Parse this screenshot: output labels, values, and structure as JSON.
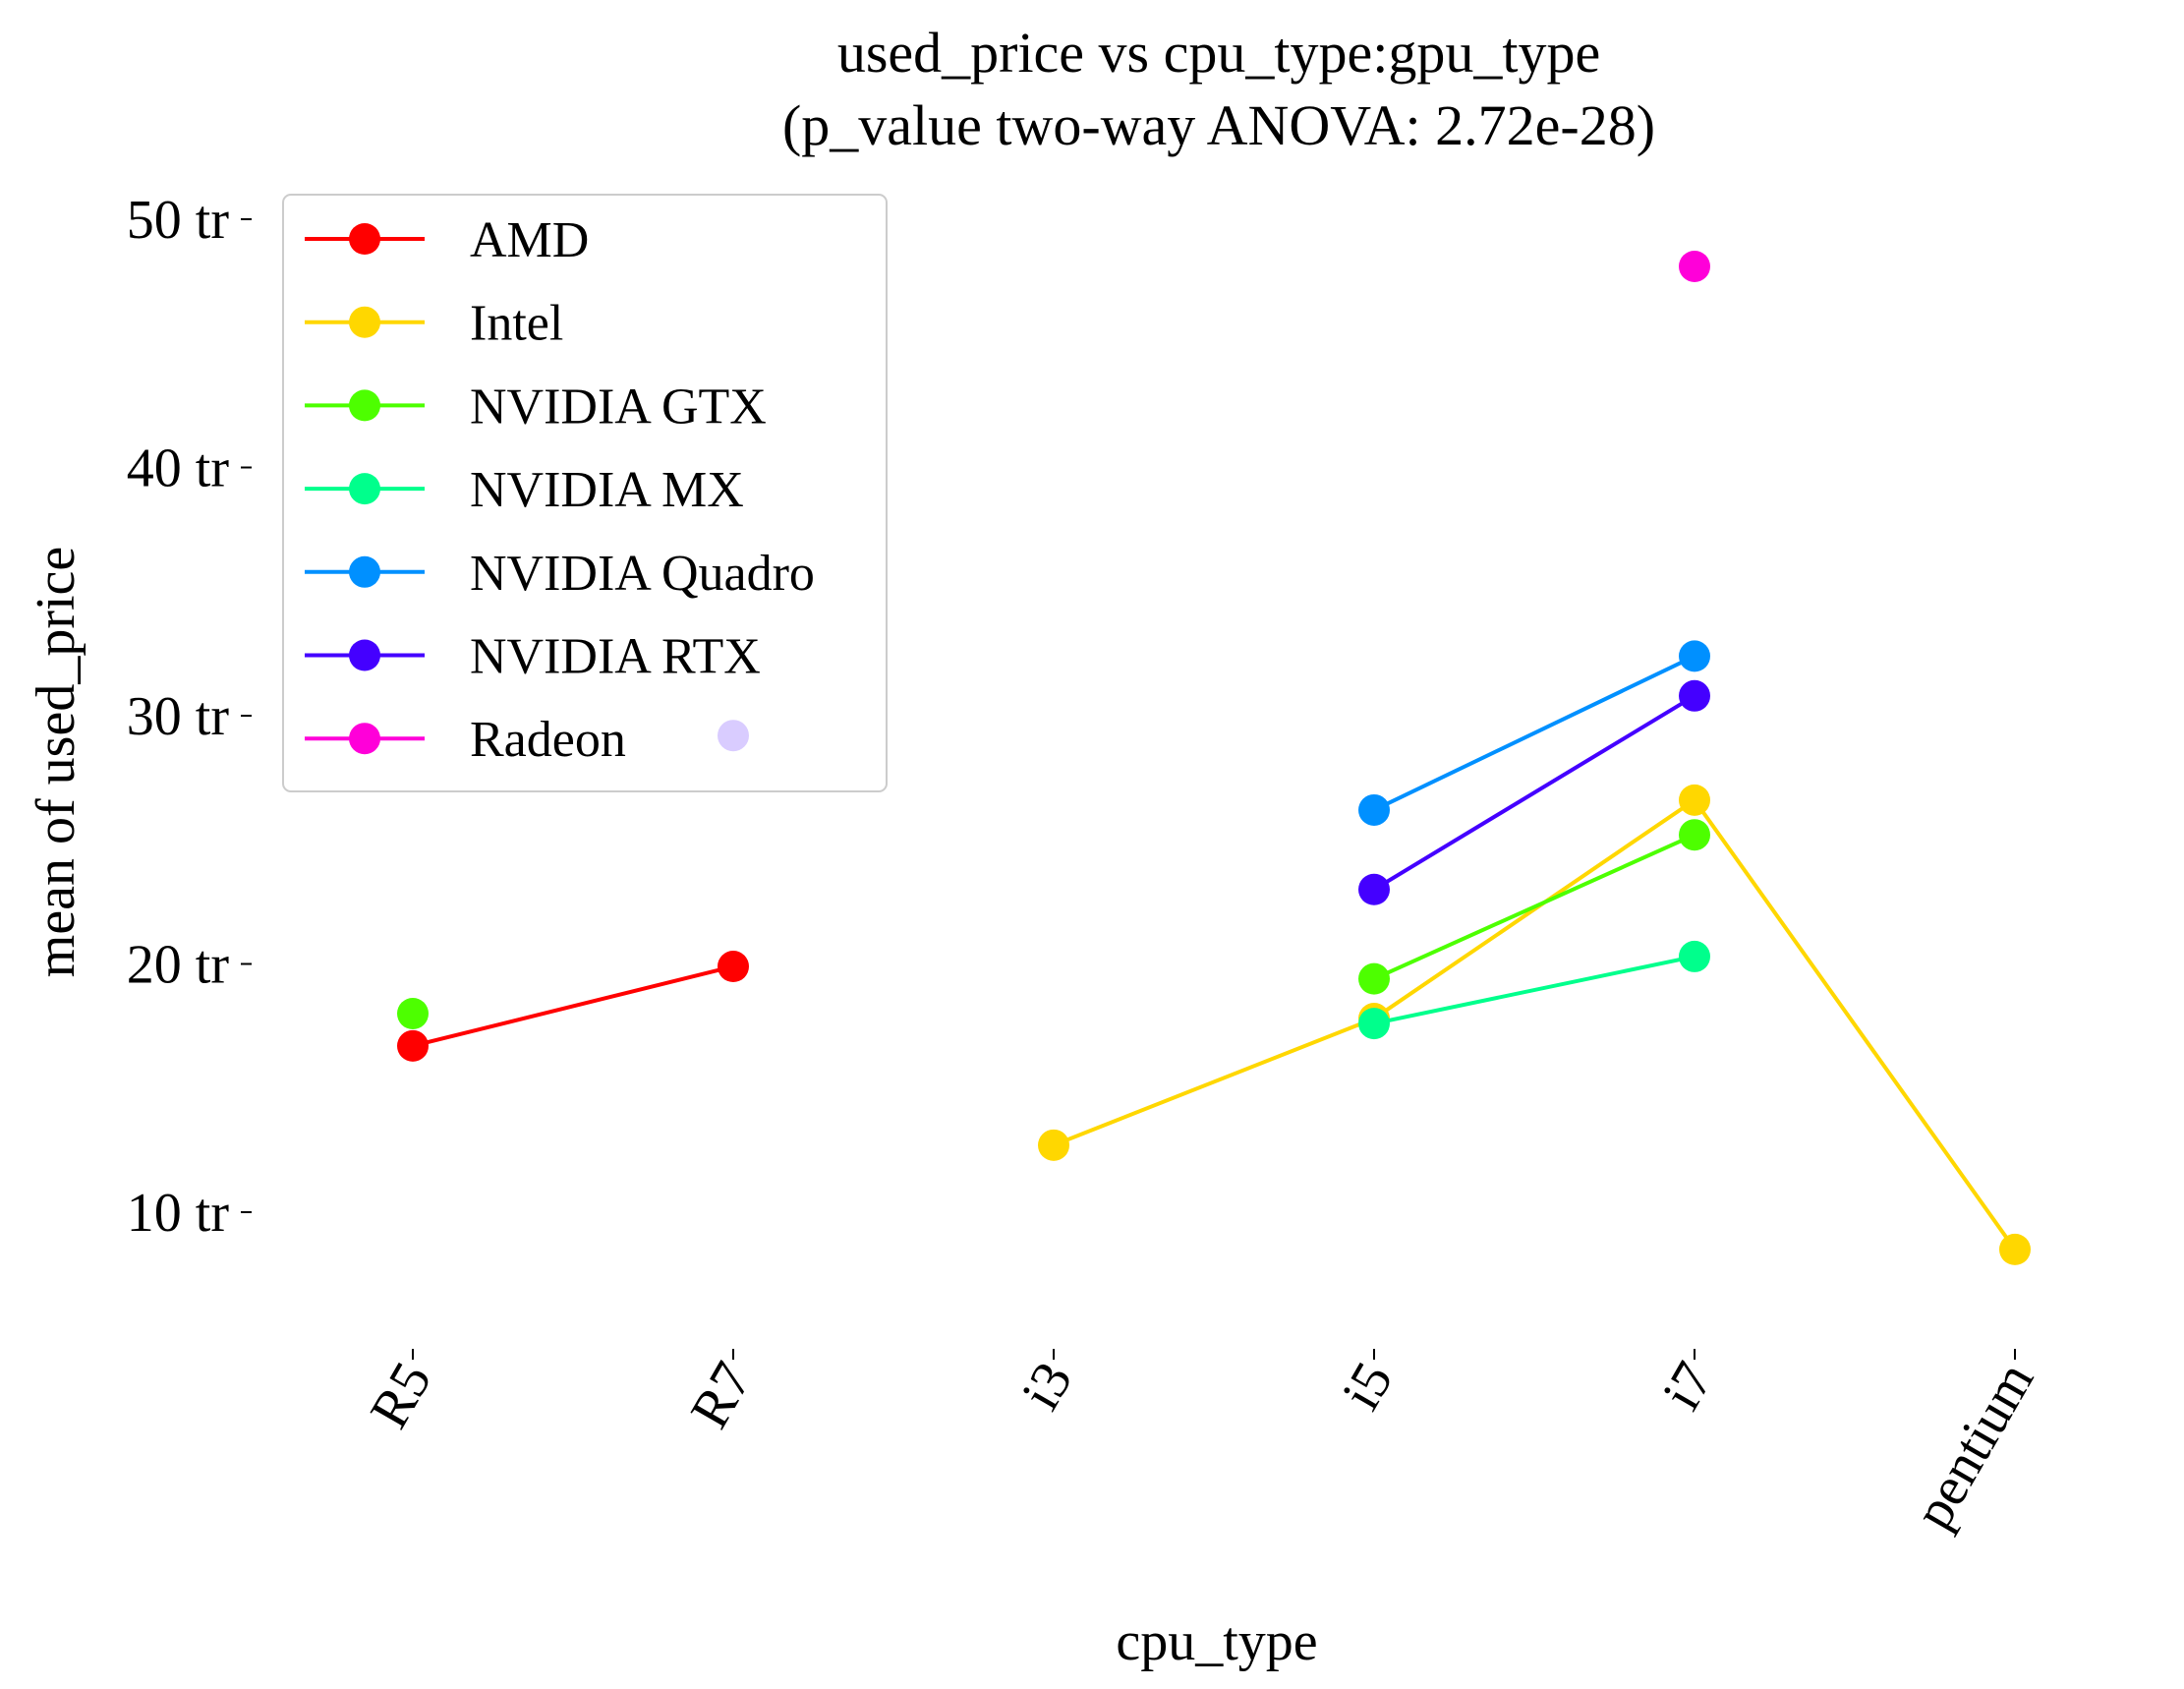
{
  "chart_data": {
    "type": "line",
    "title": "used_price vs cpu_type:gpu_type",
    "subtitle": "(p_value two-way ANOVA: 2.72e-28)",
    "xlabel": "cpu_type",
    "ylabel": "mean of used_price",
    "categories": [
      "R5",
      "R7",
      "i3",
      "i5",
      "i7",
      "pentium"
    ],
    "y_ticks": [
      10,
      20,
      30,
      40,
      50
    ],
    "y_tick_labels": [
      "10 tr",
      "20 tr",
      "30 tr",
      "40 tr",
      "50 tr"
    ],
    "ylim": [
      4.3,
      52.5
    ],
    "grid": false,
    "legend_position": "top-left",
    "series": [
      {
        "name": "AMD",
        "color": "#ff0000",
        "values": [
          16.7,
          19.9,
          null,
          null,
          null,
          null
        ]
      },
      {
        "name": "Intel",
        "color": "#ffd700",
        "values": [
          null,
          null,
          12.7,
          17.8,
          26.6,
          8.5
        ]
      },
      {
        "name": "NVIDIA GTX",
        "color": "#4dff00",
        "values": [
          18.0,
          null,
          null,
          19.4,
          25.2,
          null
        ]
      },
      {
        "name": "NVIDIA MX",
        "color": "#00ff8c",
        "values": [
          null,
          null,
          null,
          17.6,
          20.3,
          null
        ]
      },
      {
        "name": "NVIDIA Quadro",
        "color": "#0090ff",
        "values": [
          null,
          null,
          null,
          26.2,
          32.4,
          null
        ]
      },
      {
        "name": "NVIDIA RTX",
        "color": "#4400ff",
        "values": [
          null,
          29.2,
          null,
          23.0,
          30.8,
          null
        ]
      },
      {
        "name": "Radeon",
        "color": "#ff00d9",
        "values": [
          null,
          null,
          null,
          null,
          48.1,
          null
        ]
      }
    ]
  }
}
